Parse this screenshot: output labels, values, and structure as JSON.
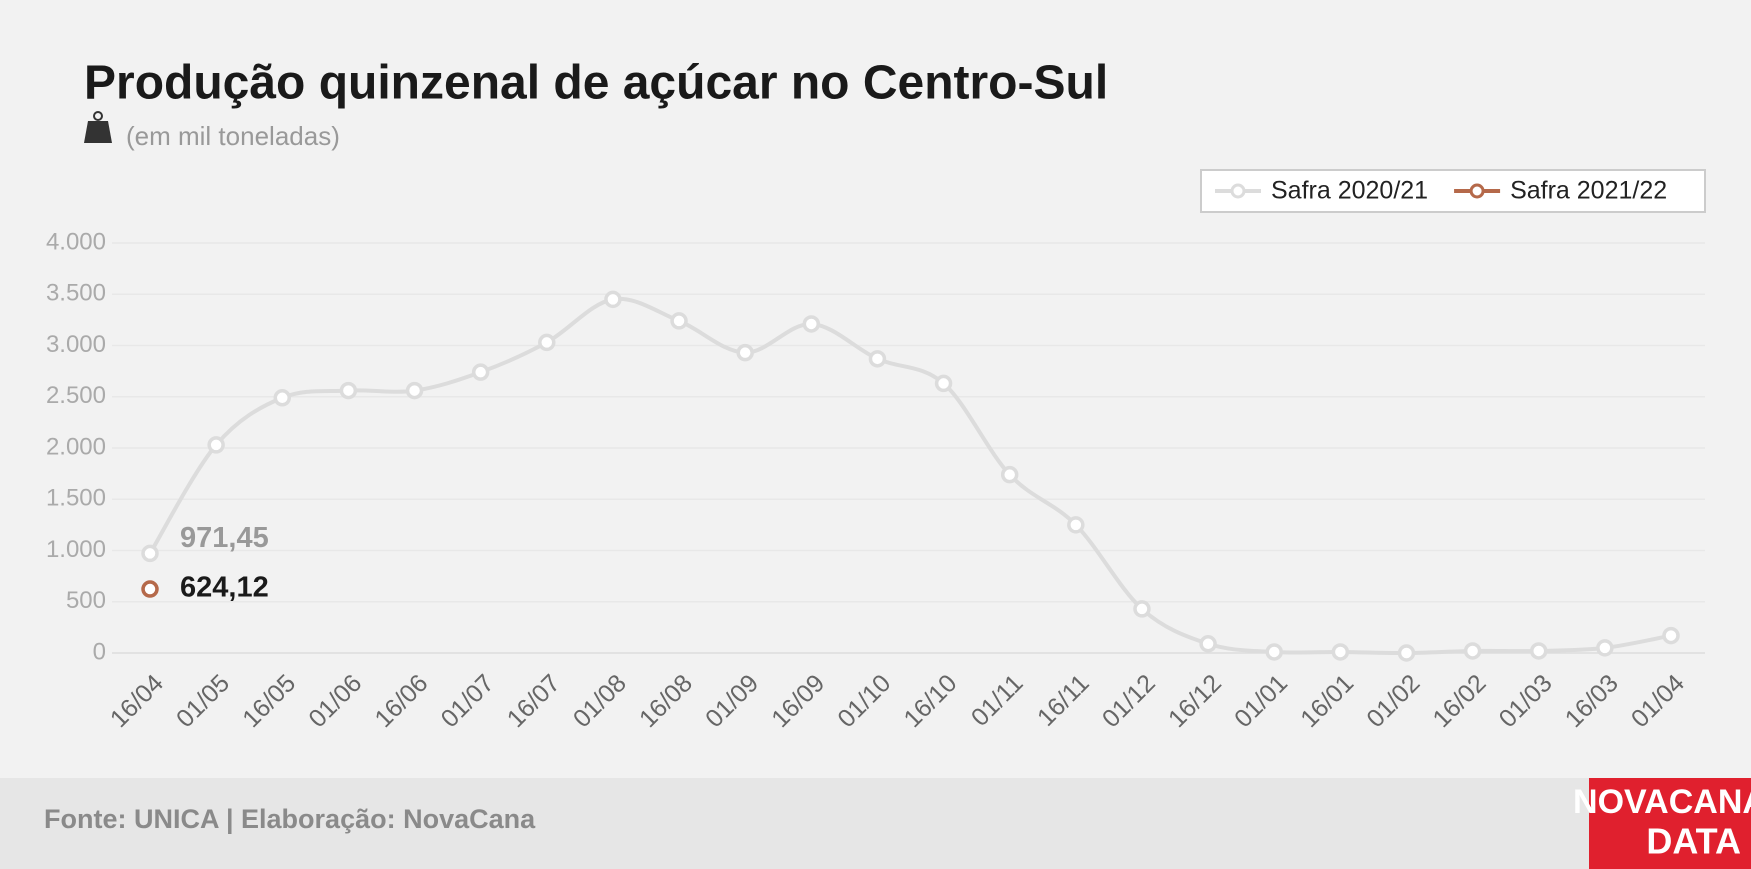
{
  "chart_data": {
    "type": "line",
    "title": "Produção quinzenal de açúcar no Centro-Sul",
    "subtitle": "(em mil toneladas)",
    "categories": [
      "16/04",
      "01/05",
      "16/05",
      "01/06",
      "16/06",
      "01/07",
      "16/07",
      "01/08",
      "16/08",
      "01/09",
      "16/09",
      "01/10",
      "16/10",
      "01/11",
      "16/11",
      "01/12",
      "16/12",
      "01/01",
      "16/01",
      "01/02",
      "16/02",
      "01/03",
      "16/03",
      "01/04"
    ],
    "series": [
      {
        "name": "Safra 2020/21",
        "color": "#dcdcdc",
        "values": [
          971.45,
          2030,
          2490,
          2560,
          2560,
          2740,
          3030,
          3450,
          3240,
          2930,
          3210,
          2870,
          2630,
          1740,
          1250,
          430,
          90,
          10,
          10,
          0,
          20,
          20,
          50,
          170
        ],
        "value_labels": [
          "971,45",
          null,
          null,
          null,
          null,
          null,
          null,
          null,
          null,
          null,
          null,
          null,
          null,
          null,
          null,
          null,
          null,
          null,
          null,
          null,
          null,
          null,
          null,
          null
        ]
      },
      {
        "name": "Safra 2021/22",
        "color": "#b5694a",
        "values": [
          624.12,
          null,
          null,
          null,
          null,
          null,
          null,
          null,
          null,
          null,
          null,
          null,
          null,
          null,
          null,
          null,
          null,
          null,
          null,
          null,
          null,
          null,
          null,
          null
        ],
        "value_labels": [
          "624,12",
          null,
          null,
          null,
          null,
          null,
          null,
          null,
          null,
          null,
          null,
          null,
          null,
          null,
          null,
          null,
          null,
          null,
          null,
          null,
          null,
          null,
          null,
          null
        ]
      }
    ],
    "ylim": [
      0,
      4000
    ],
    "yticks": [
      0,
      500,
      {
        "value": 1000,
        "label": "1.000"
      },
      {
        "value": 1500,
        "label": "1.500"
      },
      {
        "value": 2000,
        "label": "2.000"
      },
      {
        "value": 2500,
        "label": "2.500"
      },
      {
        "value": 3000,
        "label": "3.000"
      },
      {
        "value": 3500,
        "label": "3.500"
      },
      {
        "value": 4000,
        "label": "4.000"
      }
    ],
    "grid": true,
    "legend": "top-right",
    "source": "Fonte: UNICA | Elaboração: NovaCana",
    "logo": [
      "NOVACANA",
      "DATA"
    ]
  }
}
